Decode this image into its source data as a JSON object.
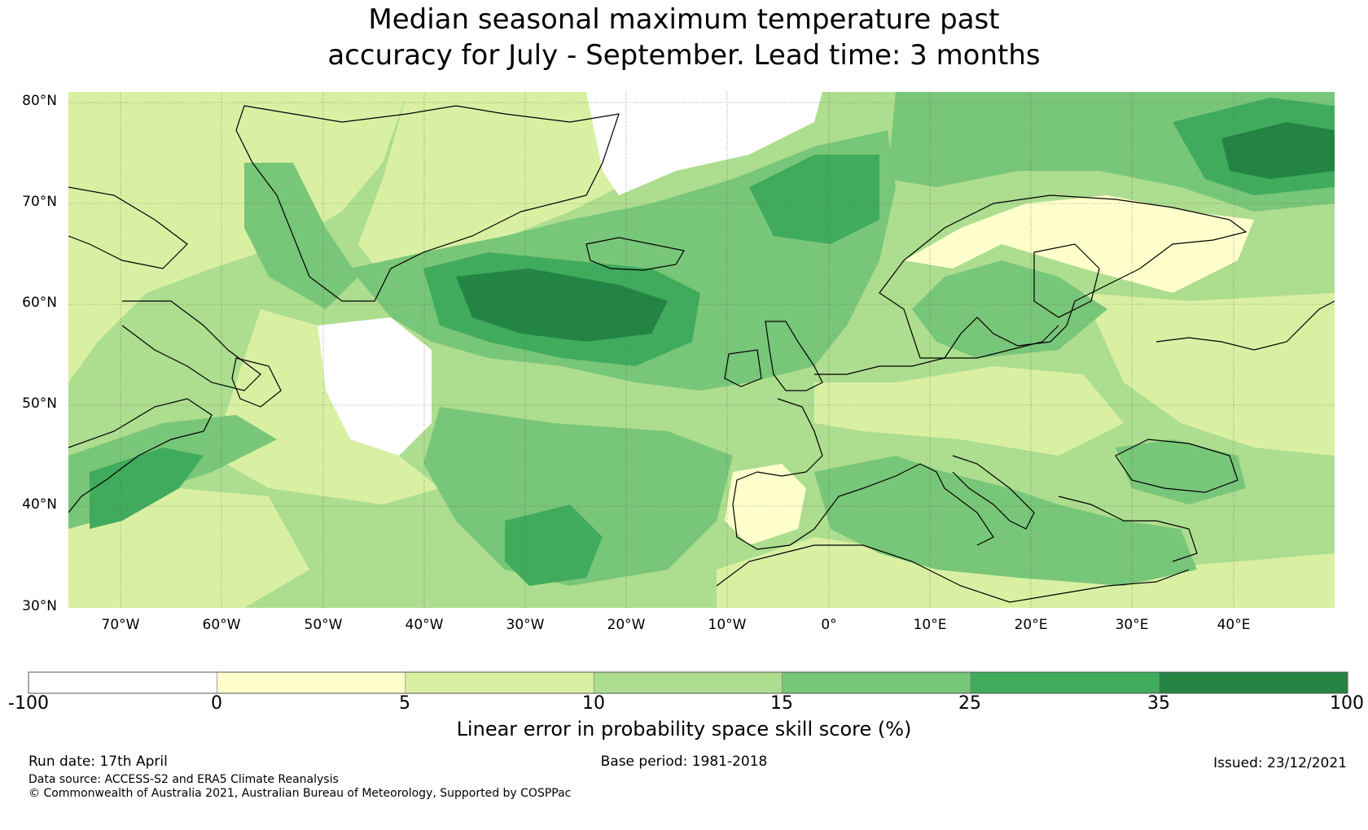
{
  "title_line1": "Median seasonal maximum temperature past",
  "title_line2": "accuracy for July - September. Lead time: 3 months",
  "lat_labels": [
    "80°N",
    "70°N",
    "60°N",
    "50°N",
    "40°N",
    "30°N"
  ],
  "lon_labels": [
    "70°W",
    "60°W",
    "50°W",
    "40°W",
    "30°W",
    "20°W",
    "10°W",
    "0°",
    "10°E",
    "20°E",
    "30°E",
    "40°E"
  ],
  "colorbar": {
    "title": "Linear error in probability space skill score (%)",
    "bounds": [
      "-100",
      "0",
      "5",
      "10",
      "15",
      "25",
      "35",
      "100"
    ],
    "colors": [
      "#ffffff",
      "#ffffcc",
      "#d9f0a3",
      "#addd8e",
      "#78c679",
      "#41ab5d",
      "#238443"
    ]
  },
  "footer": {
    "run_date": "Run date: 17th April",
    "base_period": "Base period: 1981-2018",
    "issued": "Issued: 23/12/2021",
    "data_source": "Data source: ACCESS-S2 and ERA5 Climate Reanalysis",
    "copyright": "© Commonwealth of Australia 2021, Australian Bureau of Meteorology, Supported by COSPPac"
  }
}
